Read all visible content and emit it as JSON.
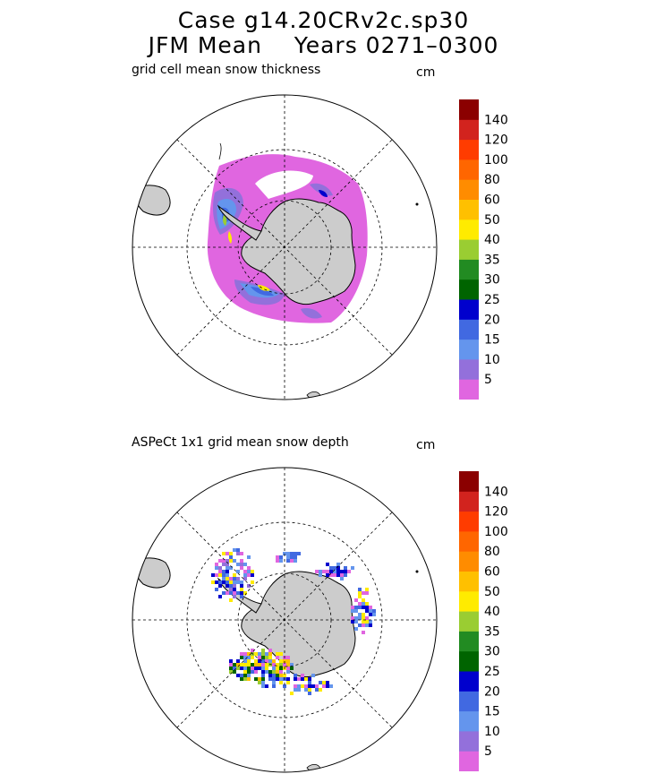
{
  "header": {
    "line1": "Case g14.20CRv2c.sp30",
    "line2_left": "JFM Mean",
    "line2_right": "Years 0271–0300"
  },
  "panels": [
    {
      "id": "model",
      "label": "grid cell mean snow thickness",
      "unit": "cm"
    },
    {
      "id": "obs",
      "label": "ASPeCt 1x1 grid mean snow depth",
      "unit": "cm"
    }
  ],
  "colorbar": {
    "colors": [
      "#e066e0",
      "#9370db",
      "#6495ed",
      "#4169e1",
      "#0000cd",
      "#006400",
      "#228b22",
      "#9acd32",
      "#ffeb00",
      "#ffc000",
      "#ff8c00",
      "#ff6600",
      "#ff3c00",
      "#d2231e",
      "#8b0000"
    ],
    "tick_labels": [
      "5",
      "10",
      "15",
      "20",
      "25",
      "30",
      "35",
      "40",
      "50",
      "60",
      "80",
      "100",
      "120",
      "140"
    ]
  },
  "map": {
    "projection": "south-polar-stereographic",
    "land_color": "#cccccc",
    "ocean_color": "#ffffff",
    "graticule": "dashed"
  }
}
